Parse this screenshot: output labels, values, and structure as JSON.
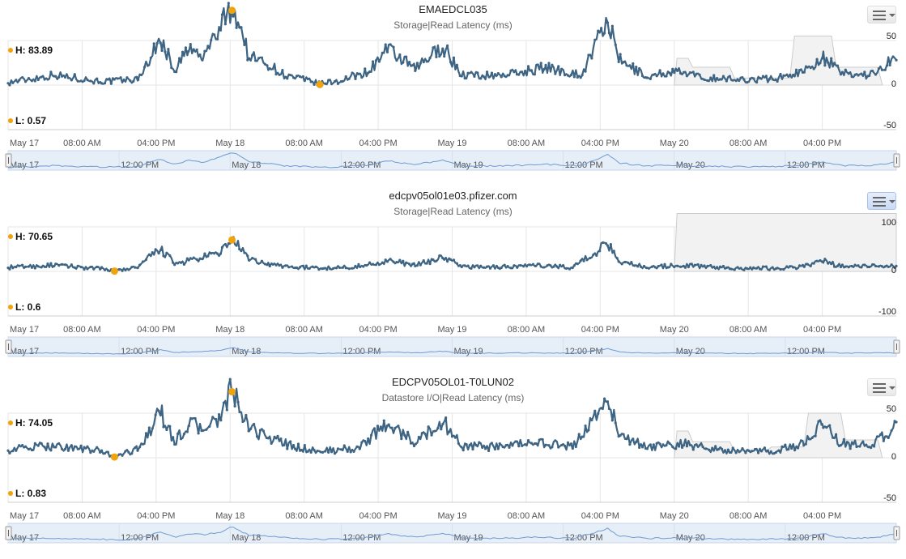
{
  "chart_data": [
    {
      "type": "line",
      "title": "EMAEDCL035",
      "subtitle": "Storage|Read Latency (ms)",
      "high_label": "H: 83.89",
      "low_label": "L: 0.57",
      "high": {
        "t": 24.2,
        "y": 83.89
      },
      "low": {
        "t": 33.7,
        "y": 0.57
      },
      "ylim": [
        -50,
        50
      ],
      "yticks": [
        "50",
        "0",
        "-50"
      ],
      "ytick_values": [
        50,
        0,
        -50
      ],
      "x_ticks": [
        "May 17",
        "08:00 AM",
        "04:00 PM",
        "May 18",
        "08:00 AM",
        "04:00 PM",
        "May 19",
        "08:00 AM",
        "04:00 PM",
        "May 20",
        "08:00 AM",
        "04:00 PM"
      ],
      "nav_ticks": [
        "May 17",
        "12:00 PM",
        "May 18",
        "12:00 PM",
        "May 19",
        "12:00 PM",
        "May 20",
        "12:00 PM"
      ],
      "band": [
        {
          "t": 72,
          "v": 0
        },
        {
          "t": 72.3,
          "v": 30
        },
        {
          "t": 73.5,
          "v": 30
        },
        {
          "t": 74,
          "v": 20
        },
        {
          "t": 78,
          "v": 20
        },
        {
          "t": 78.5,
          "v": 8
        },
        {
          "t": 82,
          "v": 8
        },
        {
          "t": 82.5,
          "v": 8
        },
        {
          "t": 84.5,
          "v": 8
        },
        {
          "t": 85,
          "v": 55
        },
        {
          "t": 89,
          "v": 55
        },
        {
          "t": 89.5,
          "v": 20
        },
        {
          "t": 94,
          "v": 20
        },
        {
          "t": 94.5,
          "v": 0
        }
      ],
      "series": [
        {
          "points": [
            {
              "t": 0,
              "y": 2
            },
            {
              "t": 5,
              "y": 10
            },
            {
              "t": 10,
              "y": 3
            },
            {
              "t": 14,
              "y": 5
            },
            {
              "t": 16.5,
              "y": 48
            },
            {
              "t": 18,
              "y": 15
            },
            {
              "t": 19.5,
              "y": 38
            },
            {
              "t": 21,
              "y": 28
            },
            {
              "t": 23,
              "y": 62
            },
            {
              "t": 24.2,
              "y": 83.89
            },
            {
              "t": 25,
              "y": 65
            },
            {
              "t": 26,
              "y": 30
            },
            {
              "t": 28,
              "y": 22
            },
            {
              "t": 30,
              "y": 9
            },
            {
              "t": 32,
              "y": 5
            },
            {
              "t": 33.7,
              "y": 0.57
            },
            {
              "t": 36,
              "y": 4
            },
            {
              "t": 39,
              "y": 14
            },
            {
              "t": 41,
              "y": 37
            },
            {
              "t": 44,
              "y": 16
            },
            {
              "t": 47,
              "y": 41
            },
            {
              "t": 49,
              "y": 10
            },
            {
              "t": 52,
              "y": 9
            },
            {
              "t": 55,
              "y": 12
            },
            {
              "t": 58,
              "y": 18
            },
            {
              "t": 62,
              "y": 10
            },
            {
              "t": 64.8,
              "y": 70
            },
            {
              "t": 66,
              "y": 26
            },
            {
              "t": 69,
              "y": 8
            },
            {
              "t": 72,
              "y": 14
            },
            {
              "t": 75,
              "y": 7
            },
            {
              "t": 79,
              "y": 5
            },
            {
              "t": 83,
              "y": 6
            },
            {
              "t": 86,
              "y": 14
            },
            {
              "t": 88,
              "y": 30
            },
            {
              "t": 90,
              "y": 12
            },
            {
              "t": 93,
              "y": 10
            },
            {
              "t": 95,
              "y": 22
            },
            {
              "t": 96,
              "y": 28
            }
          ]
        }
      ]
    },
    {
      "type": "line",
      "title": "edcpv05ol01e03.pfizer.com",
      "subtitle": "Storage|Read Latency (ms)",
      "high_label": "H: 70.65",
      "low_label": "L: 0.6",
      "high": {
        "t": 24.2,
        "y": 70.65
      },
      "low": {
        "t": 11.5,
        "y": 0.6
      },
      "ylim": [
        -100,
        100
      ],
      "yticks": [
        "100",
        "0",
        "-100"
      ],
      "ytick_values": [
        100,
        0,
        -100
      ],
      "x_ticks": [
        "May 17",
        "08:00 AM",
        "04:00 PM",
        "May 18",
        "08:00 AM",
        "04:00 PM",
        "May 19",
        "08:00 AM",
        "04:00 PM",
        "May 20",
        "08:00 AM",
        "04:00 PM"
      ],
      "nav_ticks": [
        "May 17",
        "12:00 PM",
        "May 18",
        "12:00 PM",
        "May 19",
        "12:00 PM",
        "May 20",
        "12:00 PM"
      ],
      "band": [
        {
          "t": 72,
          "v": 0
        },
        {
          "t": 72.3,
          "v": 130
        },
        {
          "t": 96,
          "v": 130
        }
      ],
      "series": [
        {
          "points": [
            {
              "t": 0,
              "y": 8
            },
            {
              "t": 5,
              "y": 12
            },
            {
              "t": 10,
              "y": 5
            },
            {
              "t": 11.5,
              "y": 0.6
            },
            {
              "t": 14,
              "y": 8
            },
            {
              "t": 16.5,
              "y": 48
            },
            {
              "t": 18,
              "y": 15
            },
            {
              "t": 21,
              "y": 28
            },
            {
              "t": 23,
              "y": 40
            },
            {
              "t": 24.2,
              "y": 70.65
            },
            {
              "t": 25,
              "y": 50
            },
            {
              "t": 26,
              "y": 25
            },
            {
              "t": 28,
              "y": 15
            },
            {
              "t": 31,
              "y": 8
            },
            {
              "t": 34,
              "y": 6
            },
            {
              "t": 38,
              "y": 10
            },
            {
              "t": 41,
              "y": 22
            },
            {
              "t": 44,
              "y": 12
            },
            {
              "t": 47,
              "y": 30
            },
            {
              "t": 49,
              "y": 10
            },
            {
              "t": 53,
              "y": 8
            },
            {
              "t": 57,
              "y": 12
            },
            {
              "t": 61,
              "y": 8
            },
            {
              "t": 64.8,
              "y": 58
            },
            {
              "t": 66,
              "y": 22
            },
            {
              "t": 69,
              "y": 8
            },
            {
              "t": 73,
              "y": 12
            },
            {
              "t": 78,
              "y": 6
            },
            {
              "t": 83,
              "y": 6
            },
            {
              "t": 86,
              "y": 10
            },
            {
              "t": 88,
              "y": 22
            },
            {
              "t": 90,
              "y": 10
            },
            {
              "t": 93,
              "y": 10
            },
            {
              "t": 96,
              "y": 12
            }
          ]
        }
      ]
    },
    {
      "type": "line",
      "title": "EDCPV05OL01-T0LUN02",
      "subtitle": "Datastore I/O|Read Latency (ms)",
      "high_label": "H: 74.05",
      "low_label": "L: 0.83",
      "high": {
        "t": 24.2,
        "y": 74.05
      },
      "low": {
        "t": 11.5,
        "y": 0.83
      },
      "ylim": [
        -50,
        50
      ],
      "yticks": [
        "50",
        "0",
        "-50"
      ],
      "ytick_values": [
        50,
        0,
        -50
      ],
      "x_ticks": [
        "May 17",
        "08:00 AM",
        "04:00 PM",
        "May 18",
        "08:00 AM",
        "04:00 PM",
        "May 19",
        "08:00 AM",
        "04:00 PM",
        "May 20",
        "08:00 AM",
        "04:00 PM"
      ],
      "nav_ticks": [
        "May 17",
        "12:00 PM",
        "May 18",
        "12:00 PM",
        "May 19",
        "12:00 PM",
        "May 20",
        "12:00 PM"
      ],
      "band": [
        {
          "t": 72,
          "v": 0
        },
        {
          "t": 72.3,
          "v": 30
        },
        {
          "t": 73.5,
          "v": 30
        },
        {
          "t": 74,
          "v": 18
        },
        {
          "t": 78,
          "v": 18
        },
        {
          "t": 78.5,
          "v": 8
        },
        {
          "t": 82,
          "v": 8
        },
        {
          "t": 82.5,
          "v": 12
        },
        {
          "t": 86,
          "v": 12
        },
        {
          "t": 86.5,
          "v": 50
        },
        {
          "t": 90,
          "v": 50
        },
        {
          "t": 90.5,
          "v": 20
        },
        {
          "t": 94,
          "v": 20
        },
        {
          "t": 94.5,
          "v": 0
        }
      ],
      "series": [
        {
          "points": [
            {
              "t": 0,
              "y": 8
            },
            {
              "t": 5,
              "y": 12
            },
            {
              "t": 10,
              "y": 6
            },
            {
              "t": 11.5,
              "y": 0.83
            },
            {
              "t": 14,
              "y": 8
            },
            {
              "t": 16.5,
              "y": 48
            },
            {
              "t": 18,
              "y": 15
            },
            {
              "t": 19.5,
              "y": 36
            },
            {
              "t": 21,
              "y": 30
            },
            {
              "t": 23,
              "y": 42
            },
            {
              "t": 24.2,
              "y": 74.05
            },
            {
              "t": 25,
              "y": 52
            },
            {
              "t": 26,
              "y": 30
            },
            {
              "t": 28,
              "y": 22
            },
            {
              "t": 31,
              "y": 10
            },
            {
              "t": 34,
              "y": 6
            },
            {
              "t": 38,
              "y": 10
            },
            {
              "t": 41,
              "y": 36
            },
            {
              "t": 44,
              "y": 15
            },
            {
              "t": 47,
              "y": 38
            },
            {
              "t": 49,
              "y": 12
            },
            {
              "t": 53,
              "y": 10
            },
            {
              "t": 57,
              "y": 16
            },
            {
              "t": 61,
              "y": 10
            },
            {
              "t": 64.8,
              "y": 63
            },
            {
              "t": 66,
              "y": 24
            },
            {
              "t": 69,
              "y": 10
            },
            {
              "t": 73,
              "y": 14
            },
            {
              "t": 78,
              "y": 6
            },
            {
              "t": 83,
              "y": 6
            },
            {
              "t": 86,
              "y": 14
            },
            {
              "t": 88,
              "y": 38
            },
            {
              "t": 90,
              "y": 14
            },
            {
              "t": 93,
              "y": 12
            },
            {
              "t": 95,
              "y": 24
            },
            {
              "t": 96,
              "y": 40
            }
          ]
        }
      ]
    }
  ],
  "colors": {
    "series": "#3e6483",
    "marker": "#f0a30a",
    "band_fill": "#f2f2f2",
    "band_stroke": "#cccccc",
    "navigator_fill": "#e6eef8",
    "navigator_line": "#6f9bd1",
    "grid": "#e6e6e6"
  }
}
